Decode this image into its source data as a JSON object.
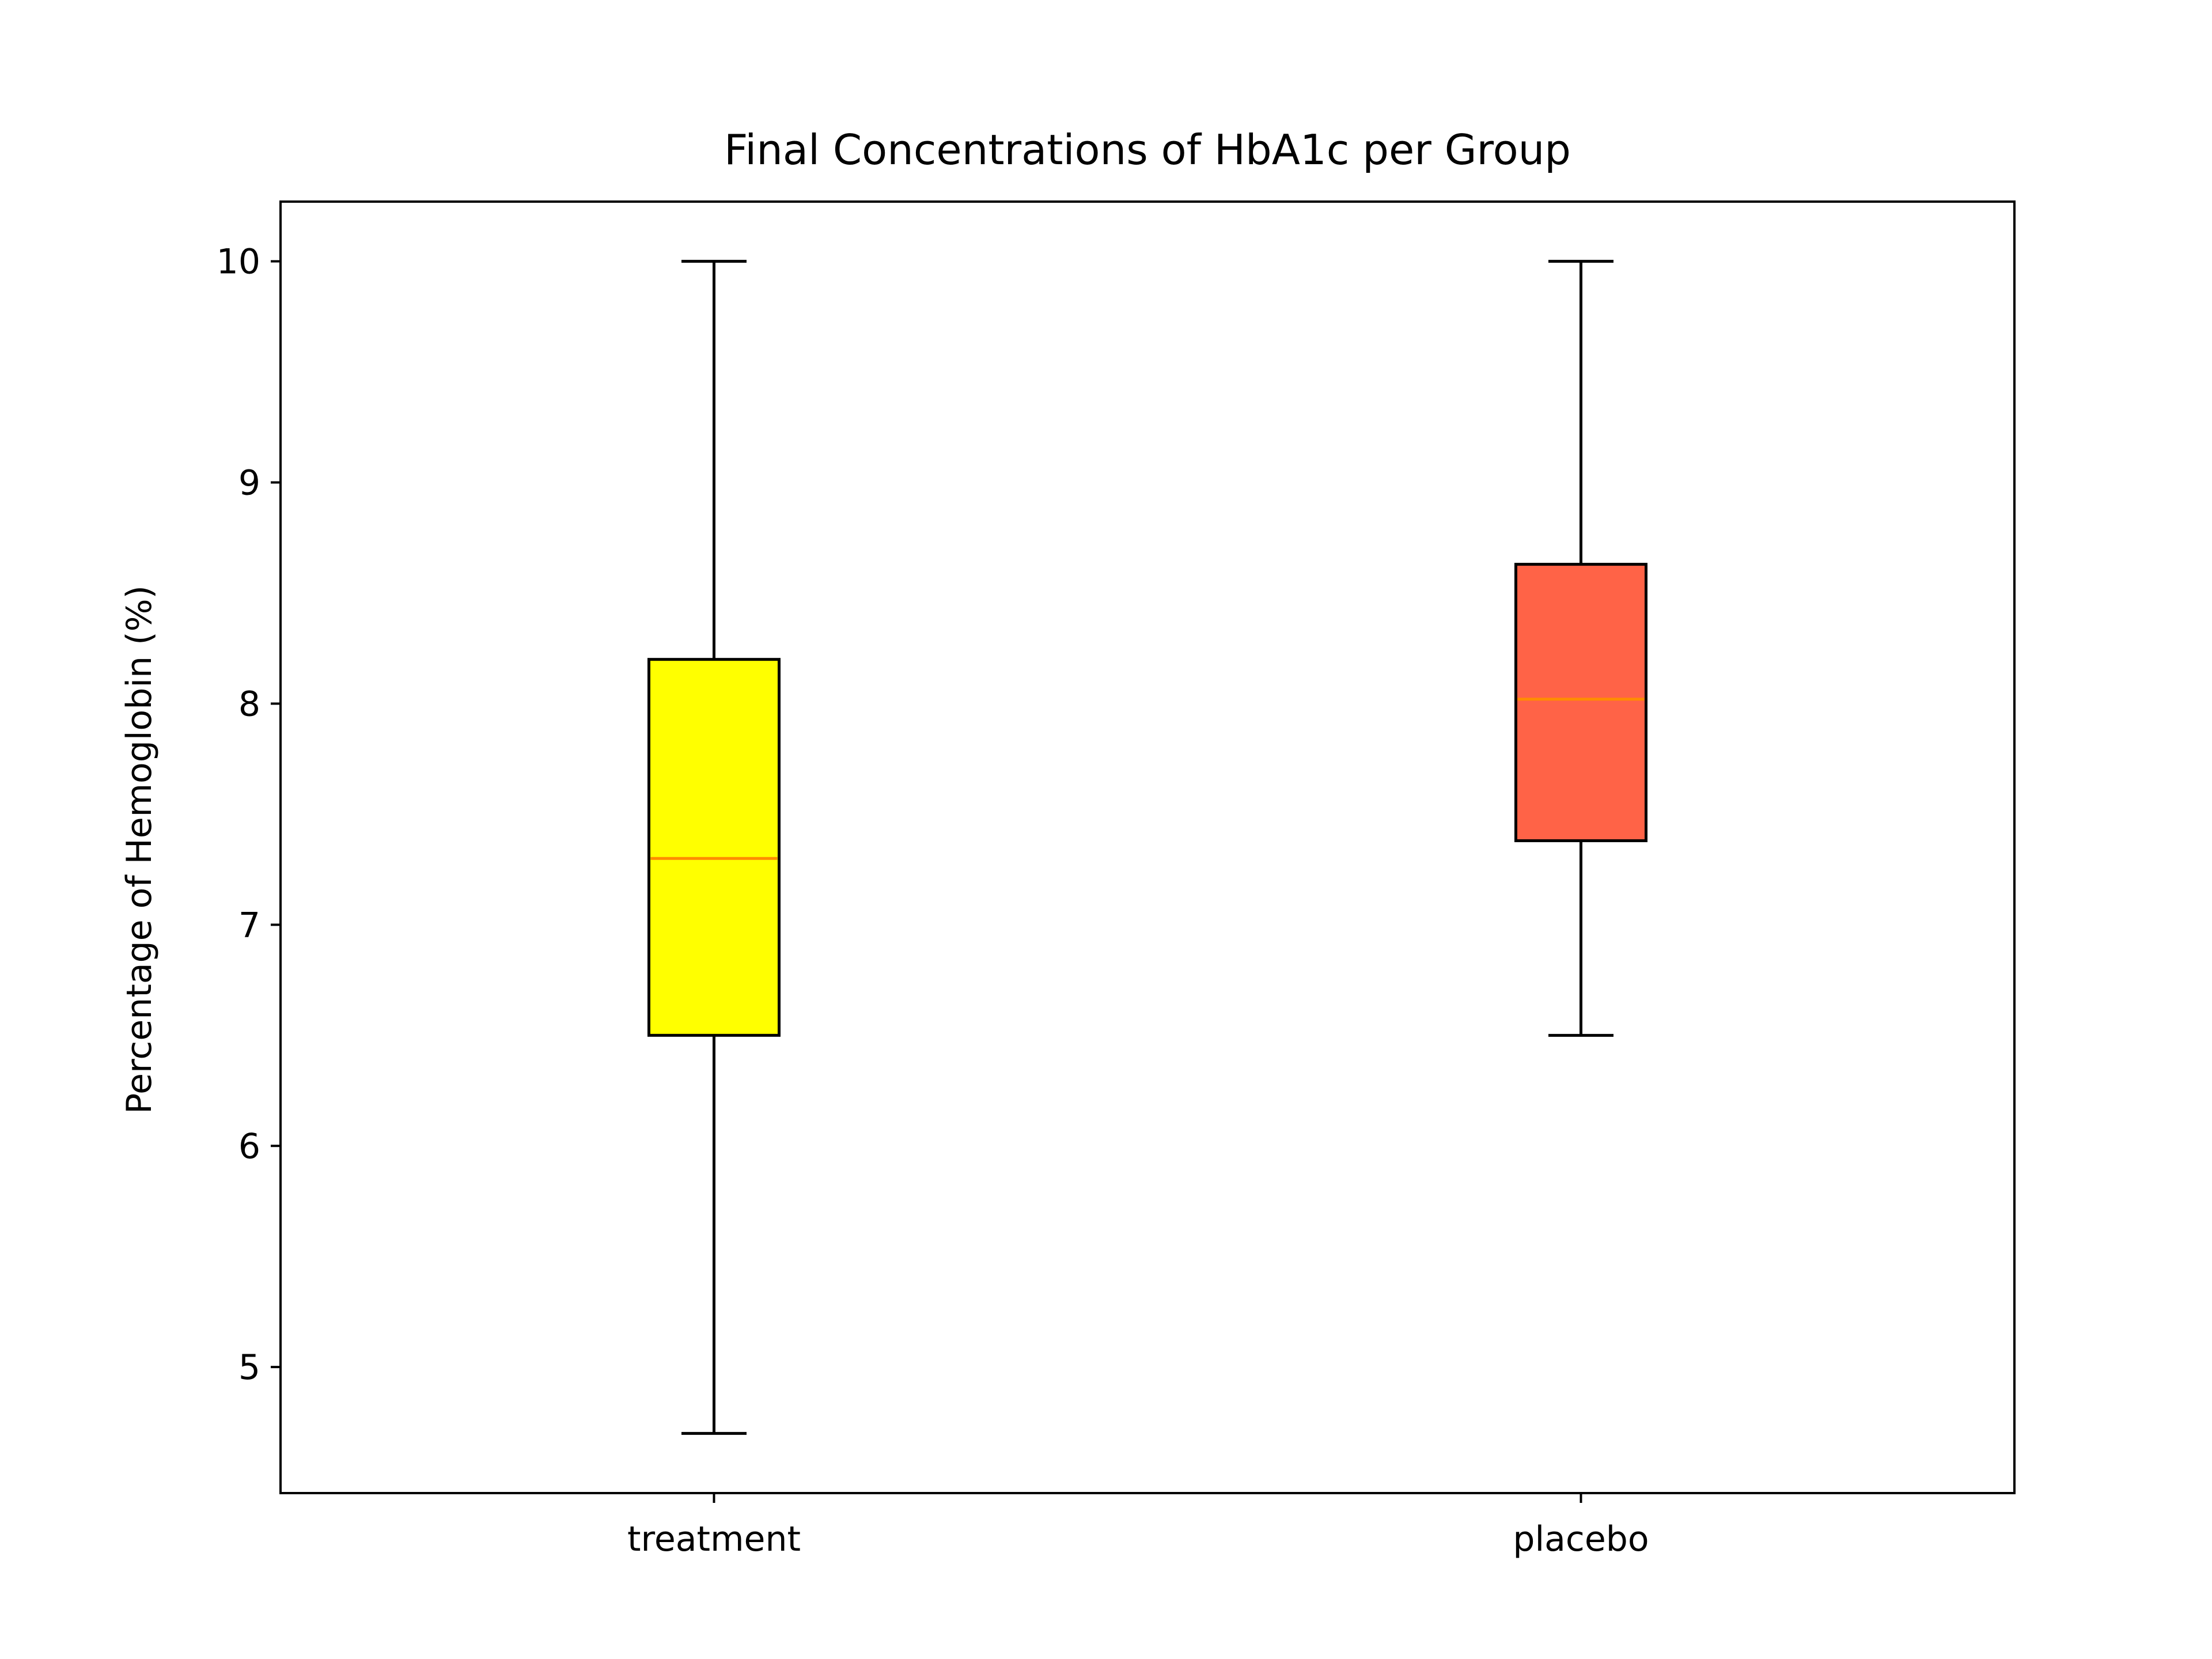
{
  "chart_data": {
    "type": "box",
    "title": "Final Concentrations of HbA1c per Group",
    "xlabel": "",
    "ylabel": "Percentage of Hemoglobin (%)",
    "categories": [
      "treatment",
      "placebo"
    ],
    "ylim": [
      4.43,
      10.27
    ],
    "yticks": [
      5,
      6,
      7,
      8,
      9,
      10
    ],
    "grid": false,
    "boxes": [
      {
        "label": "treatment",
        "whisker_low": 4.7,
        "q1": 6.5,
        "median": 7.3,
        "q3": 8.2,
        "whisker_high": 10.0,
        "fill": "#ffff00"
      },
      {
        "label": "placebo",
        "whisker_low": 6.5,
        "q1": 7.38,
        "median": 8.02,
        "q3": 8.63,
        "whisker_high": 10.0,
        "fill": "#ff6347"
      }
    ],
    "colors": {
      "median_line": "#ff8c00",
      "outline": "#000000"
    }
  }
}
